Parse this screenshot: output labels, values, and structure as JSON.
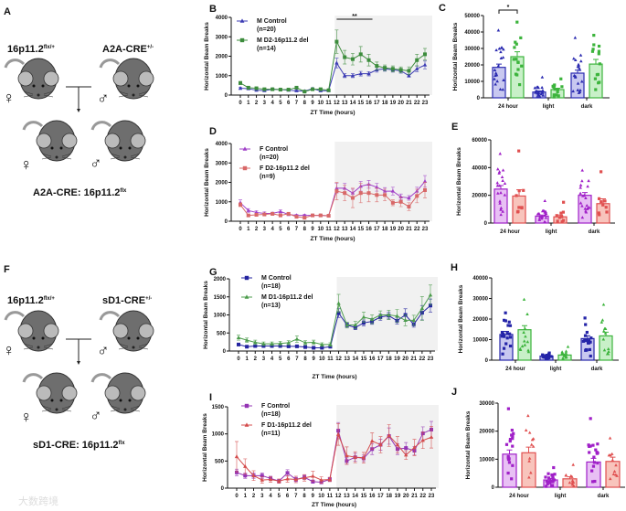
{
  "panel_labels": {
    "A": "A",
    "B": "B",
    "C": "C",
    "D": "D",
    "E": "E",
    "F": "F",
    "G": "G",
    "H": "H",
    "I": "I",
    "J": "J"
  },
  "diagrams": {
    "A": {
      "parent_female": "16p11.2",
      "parent_female_sup": "flx/+",
      "parent_male": "A2A-CRE",
      "parent_male_sup": "+/-",
      "offspring": "A2A-CRE: 16p11.2",
      "offspring_sup": "flx"
    },
    "F": {
      "parent_female": "16p11.2",
      "parent_female_sup": "flx/+",
      "parent_male": "sD1-CRE",
      "parent_male_sup": "+/-",
      "offspring": "sD1-CRE: 16p11.2",
      "offspring_sup": "flx"
    },
    "female_symbol": "♀",
    "male_symbol": "♂"
  },
  "watermark": "大数跨境",
  "chart_data": [
    {
      "id": "B",
      "type": "line",
      "xlabel": "ZT Time (hours)",
      "ylabel": "Horizontal Beam Breaks",
      "ylim": [
        0,
        4000
      ],
      "yticks": [
        0,
        1000,
        2000,
        3000,
        4000
      ],
      "x": [
        0,
        1,
        2,
        3,
        4,
        5,
        6,
        7,
        8,
        9,
        10,
        11,
        12,
        13,
        14,
        15,
        16,
        17,
        18,
        19,
        20,
        21,
        22,
        23
      ],
      "dark_phase_start": 12,
      "annotation": "**",
      "annotation_range": [
        12,
        16
      ],
      "series": [
        {
          "name": "M Control",
          "n": "(n=20)",
          "marker": "triangle",
          "color": "#3c3cb4",
          "values": [
            350,
            330,
            250,
            230,
            300,
            280,
            250,
            220,
            200,
            330,
            220,
            230,
            1650,
            1000,
            1000,
            1100,
            1100,
            1300,
            1350,
            1300,
            1250,
            1000,
            1350,
            1550
          ],
          "sem": [
            60,
            50,
            50,
            40,
            40,
            40,
            40,
            40,
            40,
            40,
            40,
            40,
            250,
            100,
            100,
            120,
            110,
            120,
            120,
            120,
            120,
            80,
            150,
            200
          ]
        },
        {
          "name": "M D2-16p11.2 del",
          "n": "(n=14)",
          "marker": "square",
          "color": "#3c8c3c",
          "values": [
            620,
            380,
            350,
            300,
            300,
            280,
            280,
            380,
            180,
            300,
            300,
            250,
            2750,
            1950,
            1850,
            2100,
            1800,
            1500,
            1400,
            1350,
            1300,
            1250,
            1800,
            2100
          ],
          "sem": [
            80,
            60,
            60,
            50,
            50,
            50,
            50,
            60,
            50,
            50,
            50,
            50,
            600,
            350,
            300,
            400,
            300,
            200,
            150,
            150,
            150,
            200,
            300,
            300
          ]
        }
      ]
    },
    {
      "id": "D",
      "type": "line",
      "xlabel": "ZT Time (hours)",
      "ylabel": "Horizontal Beam Breaks",
      "ylim": [
        0,
        4000
      ],
      "yticks": [
        0,
        1000,
        2000,
        3000,
        4000
      ],
      "x": [
        0,
        1,
        2,
        3,
        4,
        5,
        6,
        7,
        8,
        9,
        10,
        11,
        12,
        13,
        14,
        15,
        16,
        17,
        18,
        19,
        20,
        21,
        22,
        23
      ],
      "dark_phase_start": 12,
      "series": [
        {
          "name": "F Control",
          "n": "(n=20)",
          "marker": "triangle",
          "color": "#a040c8",
          "values": [
            950,
            550,
            450,
            400,
            400,
            500,
            350,
            300,
            300,
            300,
            300,
            280,
            1700,
            1700,
            1450,
            1800,
            1900,
            1750,
            1550,
            1550,
            1250,
            1200,
            1550,
            2050
          ],
          "sem": [
            150,
            100,
            80,
            80,
            60,
            80,
            60,
            60,
            60,
            50,
            50,
            50,
            250,
            250,
            200,
            250,
            200,
            200,
            180,
            200,
            150,
            120,
            200,
            300
          ]
        },
        {
          "name": "F D2-16p11.2 del",
          "n": "(n=9)",
          "marker": "square",
          "color": "#d86868",
          "values": [
            850,
            300,
            330,
            350,
            380,
            300,
            380,
            230,
            180,
            300,
            300,
            280,
            1550,
            1450,
            1200,
            1450,
            1450,
            1350,
            1350,
            950,
            1000,
            750,
            1300,
            1600
          ],
          "sem": [
            100,
            60,
            60,
            60,
            60,
            60,
            60,
            60,
            60,
            50,
            50,
            50,
            450,
            400,
            500,
            500,
            450,
            350,
            300,
            150,
            250,
            200,
            350,
            400
          ]
        }
      ]
    },
    {
      "id": "G",
      "type": "line",
      "xlabel": "ZT Time (hours)",
      "ylabel": "Horizontal Beam Breaks",
      "ylim": [
        0,
        2000
      ],
      "yticks": [
        0,
        500,
        1000,
        1500,
        2000
      ],
      "x": [
        0,
        1,
        2,
        3,
        4,
        5,
        6,
        7,
        8,
        9,
        10,
        11,
        12,
        13,
        14,
        15,
        16,
        17,
        18,
        19,
        20,
        21,
        22,
        23
      ],
      "dark_phase_start": 12,
      "series": [
        {
          "name": "M Control",
          "n": "(n=18)",
          "marker": "square",
          "color": "#2424a0",
          "values": [
            180,
            120,
            140,
            140,
            140,
            140,
            130,
            130,
            110,
            90,
            90,
            120,
            1050,
            720,
            650,
            780,
            820,
            940,
            980,
            840,
            1000,
            740,
            1060,
            1260
          ],
          "sem": [
            30,
            20,
            20,
            20,
            20,
            20,
            20,
            20,
            20,
            20,
            20,
            20,
            120,
            60,
            60,
            80,
            80,
            90,
            90,
            90,
            170,
            80,
            200,
            180
          ]
        },
        {
          "name": "M D1-16p11.2 del",
          "n": "(n=13)",
          "marker": "triangle",
          "color": "#4c9c4c",
          "values": [
            370,
            300,
            240,
            200,
            200,
            210,
            230,
            330,
            230,
            240,
            180,
            180,
            1320,
            720,
            720,
            940,
            880,
            1000,
            1000,
            970,
            850,
            850,
            1180,
            1550
          ],
          "sem": [
            70,
            60,
            60,
            50,
            50,
            60,
            60,
            90,
            60,
            60,
            50,
            50,
            250,
            80,
            100,
            140,
            120,
            110,
            130,
            180,
            150,
            140,
            330,
            280
          ]
        }
      ]
    },
    {
      "id": "I",
      "type": "line",
      "xlabel": "ZT Time (hours)",
      "ylabel": "Horizontal Beam Breaks",
      "ylim": [
        0,
        1500
      ],
      "yticks": [
        0,
        500,
        1000,
        1500
      ],
      "x": [
        0,
        1,
        2,
        3,
        4,
        5,
        6,
        7,
        8,
        9,
        10,
        11,
        12,
        13,
        14,
        15,
        16,
        17,
        18,
        19,
        20,
        21,
        22,
        23
      ],
      "dark_phase_start": 12,
      "series": [
        {
          "name": "F Control",
          "n": "(n=18)",
          "marker": "square",
          "color": "#9434b4",
          "values": [
            290,
            230,
            230,
            230,
            180,
            130,
            280,
            160,
            200,
            120,
            110,
            160,
            1060,
            500,
            570,
            550,
            720,
            800,
            960,
            720,
            740,
            690,
            1010,
            1080
          ],
          "sem": [
            60,
            50,
            50,
            50,
            40,
            30,
            60,
            40,
            40,
            30,
            30,
            30,
            150,
            60,
            70,
            60,
            100,
            100,
            150,
            100,
            100,
            80,
            120,
            150
          ]
        },
        {
          "name": "F D1-16p11.2 del",
          "n": "(n=11)",
          "marker": "triangle",
          "color": "#d44c4c",
          "values": [
            580,
            400,
            230,
            150,
            160,
            130,
            170,
            160,
            190,
            220,
            150,
            160,
            990,
            600,
            570,
            560,
            870,
            800,
            970,
            800,
            610,
            750,
            880,
            940
          ],
          "sem": [
            280,
            140,
            90,
            60,
            50,
            40,
            60,
            60,
            60,
            90,
            60,
            40,
            200,
            160,
            100,
            100,
            150,
            150,
            200,
            150,
            80,
            150,
            150,
            200
          ]
        }
      ]
    },
    {
      "id": "C",
      "type": "bar",
      "ylabel": "Horizontal Beam Breaks",
      "ylim": [
        0,
        50000
      ],
      "yticks": [
        0,
        10000,
        20000,
        30000,
        40000,
        50000
      ],
      "categories": [
        "24 hour",
        "light",
        "dark"
      ],
      "significance": {
        "label": "*",
        "category": "24 hour"
      },
      "series": [
        {
          "name": "M Control",
          "marker": "triangle",
          "color": "#2a2ab0",
          "fill": "#c8c8f0",
          "n": 20,
          "means": [
            18500,
            3500,
            15000
          ],
          "sem": [
            2000,
            700,
            1800
          ],
          "min": [
            5000,
            500,
            3000
          ],
          "max": [
            41000,
            12500,
            36500
          ]
        },
        {
          "name": "M D2-16p11.2 del",
          "marker": "square",
          "color": "#3cb43c",
          "fill": "#c8f0c8",
          "n": 14,
          "means": [
            25000,
            5000,
            20500
          ],
          "sem": [
            3000,
            800,
            2800
          ],
          "min": [
            8000,
            500,
            5000
          ],
          "max": [
            46000,
            11500,
            38000
          ]
        }
      ]
    },
    {
      "id": "E",
      "type": "bar",
      "ylabel": "Horizontal Beam Breaks",
      "ylim": [
        0,
        60000
      ],
      "yticks": [
        0,
        20000,
        40000,
        60000
      ],
      "categories": [
        "24 hour",
        "light",
        "dark"
      ],
      "series": [
        {
          "name": "F Control",
          "marker": "triangle",
          "color": "#a020c8",
          "fill": "#e8c0f4",
          "n": 20,
          "means": [
            24500,
            5000,
            20000
          ],
          "sem": [
            2500,
            800,
            2000
          ],
          "min": [
            6000,
            500,
            4000
          ],
          "max": [
            50000,
            16000,
            38000
          ]
        },
        {
          "name": "F D2-16p11.2 del",
          "marker": "square",
          "color": "#e05050",
          "fill": "#f8c4bc",
          "n": 9,
          "means": [
            19500,
            4500,
            14000
          ],
          "sem": [
            4500,
            1300,
            3500
          ],
          "min": [
            8000,
            1000,
            6000
          ],
          "max": [
            52000,
            15000,
            37000
          ]
        }
      ]
    },
    {
      "id": "H",
      "type": "bar",
      "ylabel": "Horizontal Beam Breaks",
      "ylim": [
        0,
        40000
      ],
      "yticks": [
        0,
        10000,
        20000,
        30000,
        40000
      ],
      "categories": [
        "24 hour",
        "light",
        "dark"
      ],
      "series": [
        {
          "name": "M Control",
          "marker": "square",
          "color": "#2424a8",
          "fill": "#c8c8f0",
          "n": 18,
          "means": [
            12500,
            2000,
            10500
          ],
          "sem": [
            1500,
            250,
            1400
          ],
          "min": [
            3000,
            500,
            2000
          ],
          "max": [
            23000,
            3500,
            20500
          ]
        },
        {
          "name": "M D1-16p11.2 del",
          "marker": "triangle",
          "color": "#3cb43c",
          "fill": "#c8f0c8",
          "n": 13,
          "means": [
            14800,
            2500,
            11800
          ],
          "sem": [
            2000,
            500,
            1800
          ],
          "min": [
            4000,
            500,
            3000
          ],
          "max": [
            29500,
            6500,
            27000
          ]
        }
      ]
    },
    {
      "id": "J",
      "type": "bar",
      "ylabel": "Horizontal Beam Breaks",
      "ylim": [
        0,
        30000
      ],
      "yticks": [
        0,
        10000,
        20000,
        30000
      ],
      "categories": [
        "24 hour",
        "light",
        "dark"
      ],
      "series": [
        {
          "name": "F Control",
          "marker": "square",
          "color": "#a020c8",
          "fill": "#e8c0f4",
          "n": 18,
          "means": [
            11800,
            2600,
            9000
          ],
          "sem": [
            1500,
            500,
            1300
          ],
          "min": [
            3000,
            300,
            2000
          ],
          "max": [
            28000,
            7000,
            24500
          ]
        },
        {
          "name": "F D1-16p11.2 del",
          "marker": "triangle",
          "color": "#e05050",
          "fill": "#f8c4bc",
          "n": 11,
          "means": [
            12300,
            3000,
            9200
          ],
          "sem": [
            2000,
            700,
            1500
          ],
          "min": [
            3500,
            500,
            3000
          ],
          "max": [
            25500,
            8000,
            17500
          ]
        }
      ]
    }
  ]
}
